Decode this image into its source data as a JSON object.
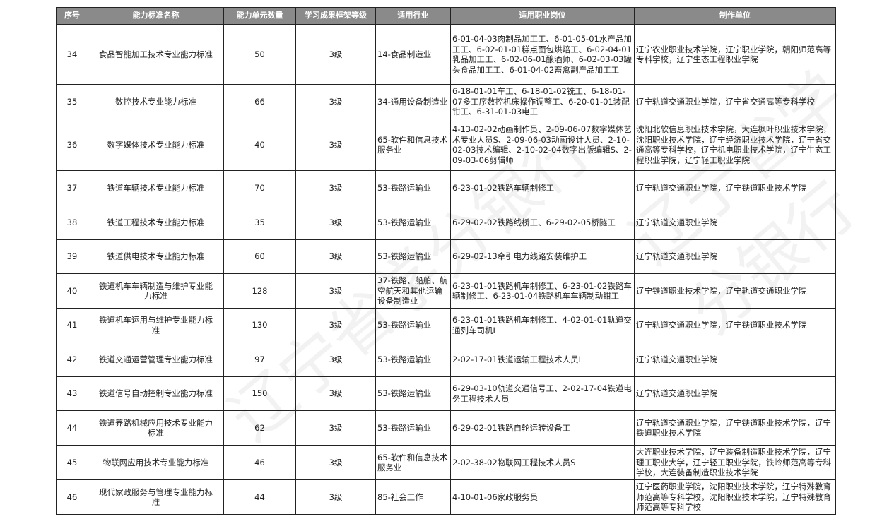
{
  "headers": [
    "序号",
    "能力标准名称",
    "能力单元数量",
    "学习成果框架等级",
    "适用行业",
    "适用职业岗位",
    "制作单位"
  ],
  "rows": [
    {
      "no": "34",
      "name": "食品智能加工技术专业能力标准",
      "units": "50",
      "level": "3级",
      "industry": "14-食品制造业",
      "jobs": "6-01-04-03肉制品加工工、6-01-05-01水产品加工工、6-02-01-01糕点面包烘焙工、6-02-04-01乳品加工工、6-02-06-01酿酒师、6-02-03-03罐头食品加工工、6-01-04-02畜禽副产品加工工",
      "org": "辽宁农业职业技术学院，辽宁职业学院，朝阳师范高等专科学校，辽宁生态工程职业学院"
    },
    {
      "no": "35",
      "name": "数控技术专业能力标准",
      "units": "66",
      "level": "3级",
      "industry": "34-通用设备制造业",
      "jobs": "6-18-01-01车工、6-18-01-02铣工、6-18-01-07多工序数控机床操作调整工、6-20-01-01装配钳工、6-31-01-03电工",
      "org": "辽宁轨道交通职业学院，辽宁省交通高等专科学校"
    },
    {
      "no": "36",
      "name": "数字媒体技术专业能力标准",
      "units": "40",
      "level": "3级",
      "industry": "65-软件和信息技术服务业",
      "jobs": "4-13-02-02动画制作员、2-09-06-07数字媒体艺术专业人员S、2-09-06-03动画设计人员、2-10-02-03技术编辑、2-10-02-04数字出版编辑S、2-09-03-06剪辑师",
      "org": "沈阳北软信息职业技术学院，大连枫叶职业技术学院，沈阳职业技术学院，辽宁经济职业技术学院，辽宁省交通高等专科学校，辽宁机电职业技术学院，辽宁生态工程职业学院，辽宁轻工职业学院"
    },
    {
      "no": "37",
      "name": "铁道车辆技术专业能力标准",
      "units": "70",
      "level": "3级",
      "industry": "53-铁路运输业",
      "jobs": "6-23-01-02铁路车辆制修工",
      "org": "辽宁轨道交通职业学院，辽宁铁道职业技术学院"
    },
    {
      "no": "38",
      "name": "铁道工程技术专业能力标准",
      "units": "35",
      "level": "3级",
      "industry": "53-铁路运输业",
      "jobs": "6-29-02-02铁路线桥工、6-29-02-05桥隧工",
      "org": "辽宁轨道交通职业学院"
    },
    {
      "no": "39",
      "name": "铁道供电技术专业能力标准",
      "units": "60",
      "level": "3级",
      "industry": "53-铁路运输业",
      "jobs": "6-29-02-13牵引电力线路安装维护工",
      "org": "辽宁轨道交通职业学院"
    },
    {
      "no": "40",
      "name": "铁道机车车辆制造与维护专业能力标准",
      "units": "128",
      "level": "3级",
      "industry": "37-铁路、船舶、航空航天和其他运输设备制造业",
      "jobs": "6-23-01-01铁路机车制修工、6-23-01-02铁路车辆制修工、6-23-01-04铁路机车车辆制动钳工",
      "org": "辽宁铁道职业技术学院，辽宁轨道交通职业学院"
    },
    {
      "no": "41",
      "name": "铁道机车运用与维护专业能力标准",
      "units": "130",
      "level": "3级",
      "industry": "53-铁路运输业",
      "jobs": "6-23-01-01铁路机车制修工、4-02-01-01轨道交通列车司机L",
      "org": "辽宁轨道交通职业学院，辽宁铁道职业技术学院"
    },
    {
      "no": "42",
      "name": "铁道交通运营管理专业能力标准",
      "units": "97",
      "level": "3级",
      "industry": "53-铁路运输业",
      "jobs": "2-02-17-01铁道运输工程技术人员L",
      "org": "辽宁轨道交通职业学院"
    },
    {
      "no": "43",
      "name": "铁道信号自动控制专业能力标准",
      "units": "150",
      "level": "3级",
      "industry": "53-铁路运输业",
      "jobs": "6-29-03-10轨道交通信号工、2-02-17-04铁道电务工程技术人员",
      "org": "辽宁轨道交通职业学院"
    },
    {
      "no": "44",
      "name": "铁道养路机械应用技术专业能力标准",
      "units": "62",
      "level": "3级",
      "industry": "53-铁路运输业",
      "jobs": "6-29-02-01铁路自轮运转设备工",
      "org": "辽宁轨道交通职业学院，辽宁铁道职业技术学院，辽宁铁道职业技术学院"
    },
    {
      "no": "45",
      "name": "物联网应用技术专业能力标准",
      "units": "46",
      "level": "3级",
      "industry": "65-软件和信息技术服务业",
      "jobs": "2-02-38-02物联网工程技术人员S",
      "org": "大连职业技术学院，辽宁装备制造职业技术学院，辽宁理工职业大学，辽宁轻工职业学院，铁岭师范高等专科学校，大连装备制造职业技术学院"
    },
    {
      "no": "46",
      "name": "现代家政服务与管理专业能力标准",
      "units": "44",
      "level": "3级",
      "industry": "85-社会工作",
      "jobs": "4-10-01-06家政服务员",
      "org": "辽宁医药职业学院，沈阳职业技术学院，辽宁特殊教育师范高等专科学校，沈阳职业技术学院，辽宁特殊教育师范高等专科学校"
    }
  ],
  "watermark": "辽宁省学分银行"
}
